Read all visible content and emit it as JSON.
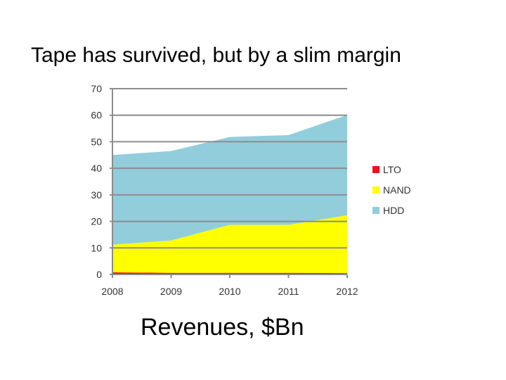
{
  "slide": {
    "title": "Tape has survived, but by a slim margin",
    "caption": "Revenues, $Bn"
  },
  "chart_data": {
    "type": "area",
    "stacked": true,
    "x": [
      "2008",
      "2009",
      "2010",
      "2011",
      "2012"
    ],
    "series": [
      {
        "name": "LTO",
        "color": "#e8141e",
        "values": [
          0.8,
          0.6,
          0.6,
          0.6,
          0.5
        ]
      },
      {
        "name": "NAND",
        "color": "#ffff00",
        "values": [
          10.4,
          12.2,
          18.1,
          18.1,
          21.8
        ]
      },
      {
        "name": "HDD",
        "color": "#92cddc",
        "values": [
          33.8,
          33.7,
          33.1,
          33.8,
          37.8
        ]
      }
    ],
    "ylim": [
      0,
      70
    ],
    "yticks": [
      0,
      10,
      20,
      30,
      40,
      50,
      60,
      70
    ],
    "grid": true,
    "legend": "right",
    "title": "",
    "xlabel": "",
    "ylabel": ""
  }
}
